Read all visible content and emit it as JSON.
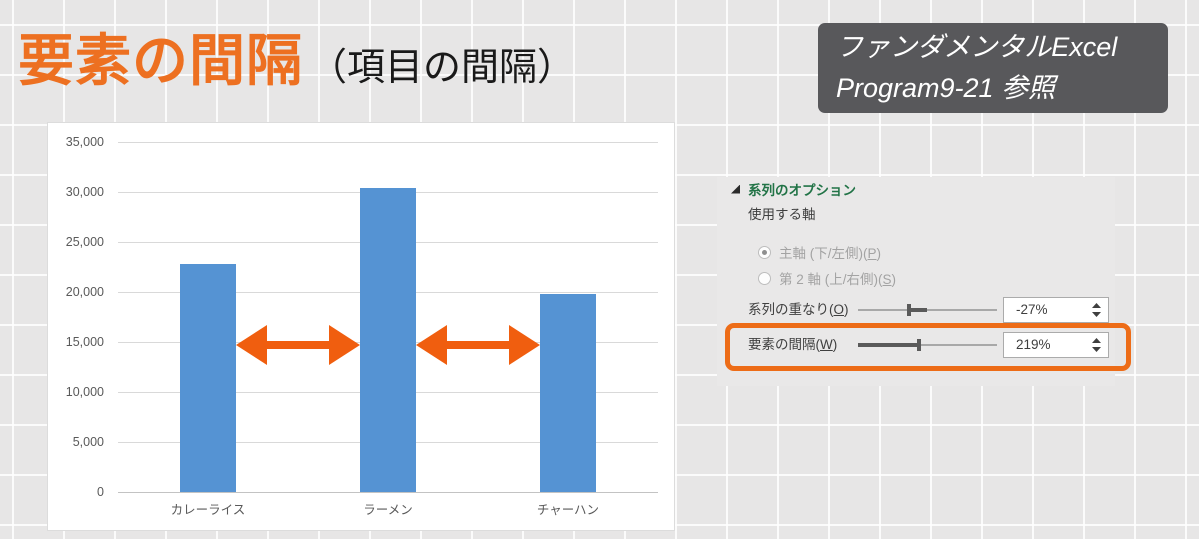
{
  "title": {
    "main": "要素の間隔",
    "sub": "（項目の間隔）"
  },
  "ref_box": {
    "line1": "ファンダメンタルExcel",
    "line2": "Program9-21 参照"
  },
  "chart_data": {
    "type": "bar",
    "title": "",
    "categories": [
      "カレーライス",
      "ラーメン",
      "チャーハン"
    ],
    "values": [
      22800,
      30400,
      19800
    ],
    "xlabel": "",
    "ylabel": "",
    "ylim": [
      0,
      35000
    ],
    "ytick_step": 5000,
    "ytick_labels": [
      "35,000",
      "30,000",
      "25,000",
      "20,000",
      "15,000",
      "10,000",
      "5,000",
      "0"
    ],
    "grid": true,
    "legend": false,
    "bar_color": "#5593D3",
    "annotations": [
      {
        "type": "double-arrow",
        "between": [
          "カレーライス",
          "ラーメン"
        ],
        "y": 15000,
        "color": "#F05E0F"
      },
      {
        "type": "double-arrow",
        "between": [
          "ラーメン",
          "チャーハン"
        ],
        "y": 15000,
        "color": "#F05E0F"
      }
    ]
  },
  "panel": {
    "section_title": "系列のオプション",
    "axis_group_label": "使用する軸",
    "radios": [
      {
        "label_prefix": "主軸 (下/左側)(",
        "access_key": "P",
        "label_suffix": ")",
        "selected": true,
        "enabled": false
      },
      {
        "label_prefix": "第 2 軸 (上/右側)(",
        "access_key": "S",
        "label_suffix": ")",
        "selected": false,
        "enabled": false
      }
    ],
    "sliders": [
      {
        "label_prefix": "系列の重なり(",
        "access_key": "O",
        "label_suffix": ")",
        "value": -27,
        "min": -100,
        "max": 100,
        "display": "-27%",
        "highlighted": false
      },
      {
        "label_prefix": "要素の間隔(",
        "access_key": "W",
        "label_suffix": ")",
        "value": 219,
        "min": 0,
        "max": 500,
        "display": "219%",
        "highlighted": true
      }
    ]
  },
  "colors": {
    "title_orange": "#ED7021",
    "arrow_orange": "#F05E0F",
    "highlight_orange": "#ED6C17",
    "bar_blue": "#5593D3",
    "section_green": "#217346",
    "ref_box_bg": "#58585B"
  }
}
